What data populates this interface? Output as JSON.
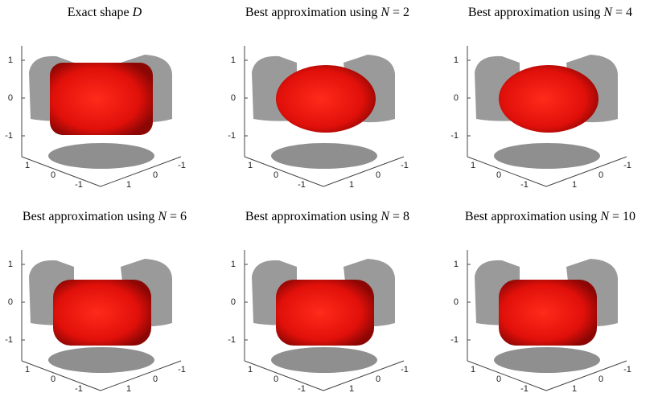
{
  "panels": [
    {
      "title": [
        "Exact shape",
        "D"
      ]
    },
    {
      "title": [
        "Best approximation using",
        "N",
        "= 2"
      ]
    },
    {
      "title": [
        "Best approximation using",
        "N",
        "= 4"
      ]
    },
    {
      "title": [
        "Best approximation using",
        "N",
        "= 6"
      ]
    },
    {
      "title": [
        "Best approximation using",
        "N",
        "= 8"
      ]
    },
    {
      "title": [
        "Best approximation using",
        "N",
        "= 10"
      ]
    }
  ],
  "z_ticks": [
    1,
    0,
    -1
  ],
  "x_ticks": [
    1,
    0,
    -1
  ],
  "y_ticks": [
    -1,
    0,
    1
  ]
}
